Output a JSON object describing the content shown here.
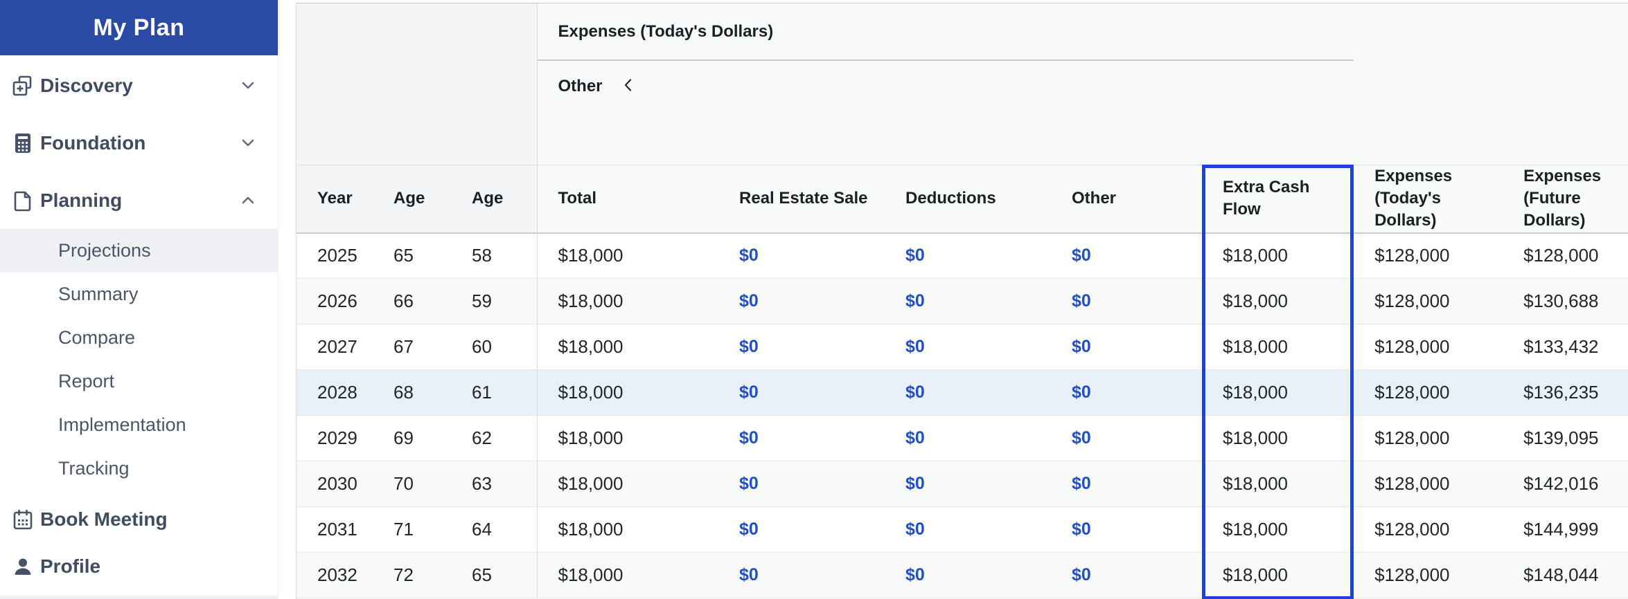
{
  "sidebar": {
    "title": "My Plan",
    "nav": [
      {
        "label": "Discovery",
        "icon": "discovery-add-icon",
        "state": "collapsed"
      },
      {
        "label": "Foundation",
        "icon": "calculator-icon",
        "state": "collapsed"
      },
      {
        "label": "Planning",
        "icon": "document-icon",
        "state": "expanded"
      }
    ],
    "planning_subitems": [
      {
        "label": "Projections",
        "active": true
      },
      {
        "label": "Summary",
        "active": false
      },
      {
        "label": "Compare",
        "active": false
      },
      {
        "label": "Report",
        "active": false
      },
      {
        "label": "Implementation",
        "active": false
      },
      {
        "label": "Tracking",
        "active": false
      }
    ],
    "footer_nav": [
      {
        "label": "Book Meeting",
        "icon": "calendar-icon"
      },
      {
        "label": "Profile",
        "icon": "person-icon"
      }
    ]
  },
  "table": {
    "group_header": "Expenses (Today's Dollars)",
    "sub_header": "Other",
    "sub_header_collapse_icon": "chevron-left",
    "columns": [
      "Year",
      "Age",
      "Age",
      "Total",
      "Real Estate Sale",
      "Deductions",
      "Other",
      "Extra Cash Flow",
      "Expenses (Today's Dollars)",
      "Expenses (Future Dollars)"
    ],
    "col_keys": [
      "year",
      "age_primary",
      "age_spouse",
      "total",
      "real_estate_sale",
      "deductions",
      "other",
      "extra_cash_flow",
      "expenses_todays_dollars",
      "expenses_future_dollars"
    ],
    "link_columns": [
      "real_estate_sale",
      "deductions",
      "other"
    ],
    "highlighted_column": "extra_cash_flow",
    "rows": [
      {
        "highlighted": false,
        "cells": [
          "2025",
          "65",
          "58",
          "$18,000",
          "$0",
          "$0",
          "$0",
          "$18,000",
          "$128,000",
          "$128,000"
        ]
      },
      {
        "highlighted": false,
        "cells": [
          "2026",
          "66",
          "59",
          "$18,000",
          "$0",
          "$0",
          "$0",
          "$18,000",
          "$128,000",
          "$130,688"
        ]
      },
      {
        "highlighted": false,
        "cells": [
          "2027",
          "67",
          "60",
          "$18,000",
          "$0",
          "$0",
          "$0",
          "$18,000",
          "$128,000",
          "$133,432"
        ]
      },
      {
        "highlighted": true,
        "cells": [
          "2028",
          "68",
          "61",
          "$18,000",
          "$0",
          "$0",
          "$0",
          "$18,000",
          "$128,000",
          "$136,235"
        ]
      },
      {
        "highlighted": false,
        "cells": [
          "2029",
          "69",
          "62",
          "$18,000",
          "$0",
          "$0",
          "$0",
          "$18,000",
          "$128,000",
          "$139,095"
        ]
      },
      {
        "highlighted": false,
        "cells": [
          "2030",
          "70",
          "63",
          "$18,000",
          "$0",
          "$0",
          "$0",
          "$18,000",
          "$128,000",
          "$142,016"
        ]
      },
      {
        "highlighted": false,
        "cells": [
          "2031",
          "71",
          "64",
          "$18,000",
          "$0",
          "$0",
          "$0",
          "$18,000",
          "$128,000",
          "$144,999"
        ]
      },
      {
        "highlighted": false,
        "cells": [
          "2032",
          "72",
          "65",
          "$18,000",
          "$0",
          "$0",
          "$0",
          "$18,000",
          "$128,000",
          "$148,044"
        ]
      }
    ]
  },
  "colors": {
    "sidebar_header_bg": "#2b4aa5",
    "link_blue": "#2150c4",
    "column_highlight_border": "#1e3fe2",
    "row_highlight_bg": "#e8f1f9",
    "row_stripe_bg": "#f8f9f9"
  }
}
